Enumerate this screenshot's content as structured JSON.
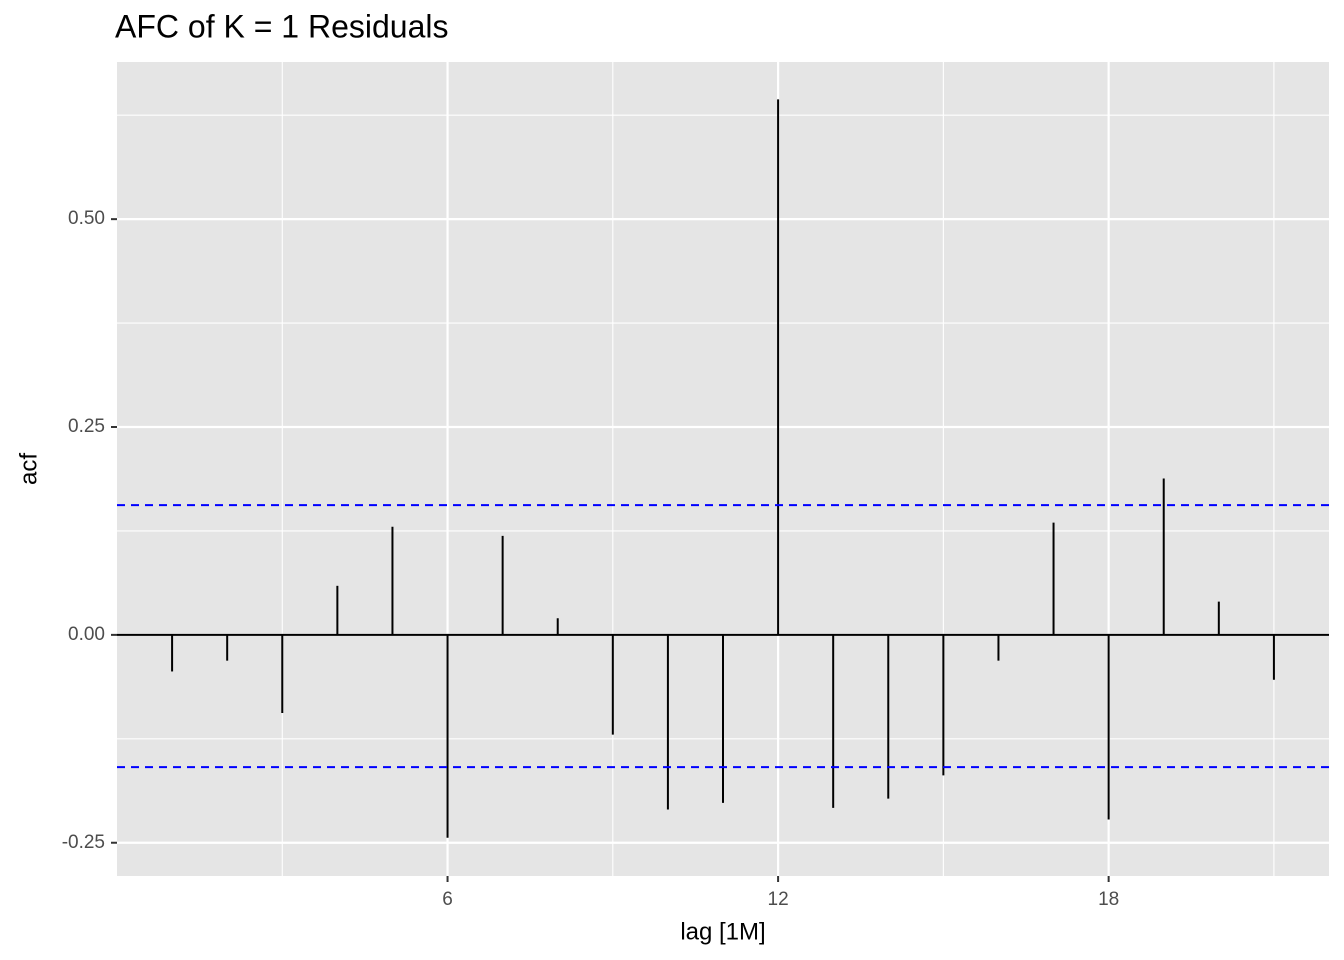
{
  "chart_data": {
    "type": "acf",
    "title": "AFC of K = 1 Residuals",
    "x_label": "lag [1M]",
    "y_label": "acf",
    "x": [
      1,
      2,
      3,
      4,
      5,
      6,
      7,
      8,
      9,
      10,
      11,
      12,
      13,
      14,
      15,
      16,
      17,
      18,
      19,
      20,
      21
    ],
    "values": [
      -0.044,
      -0.031,
      -0.094,
      0.059,
      0.13,
      -0.244,
      0.119,
      0.02,
      -0.12,
      -0.21,
      -0.202,
      0.644,
      -0.208,
      -0.197,
      -0.169,
      -0.031,
      0.135,
      -0.222,
      0.188,
      0.04,
      -0.054
    ],
    "color": "#000000",
    "ci_lines": [
      0.156,
      -0.159
    ],
    "ci_color": "#0000ff",
    "xlim": [
      0,
      22
    ],
    "ylim": [
      -0.29,
      0.689
    ],
    "xticks": [
      6,
      12,
      18
    ],
    "yticks": [
      {
        "value": -0.25,
        "label": "-0.25"
      },
      {
        "value": 0,
        "label": "0.00"
      },
      {
        "value": 0.25,
        "label": "0.25"
      },
      {
        "value": 0.5,
        "label": "0.50"
      }
    ],
    "grid": true,
    "background": "#e5e5e5"
  }
}
